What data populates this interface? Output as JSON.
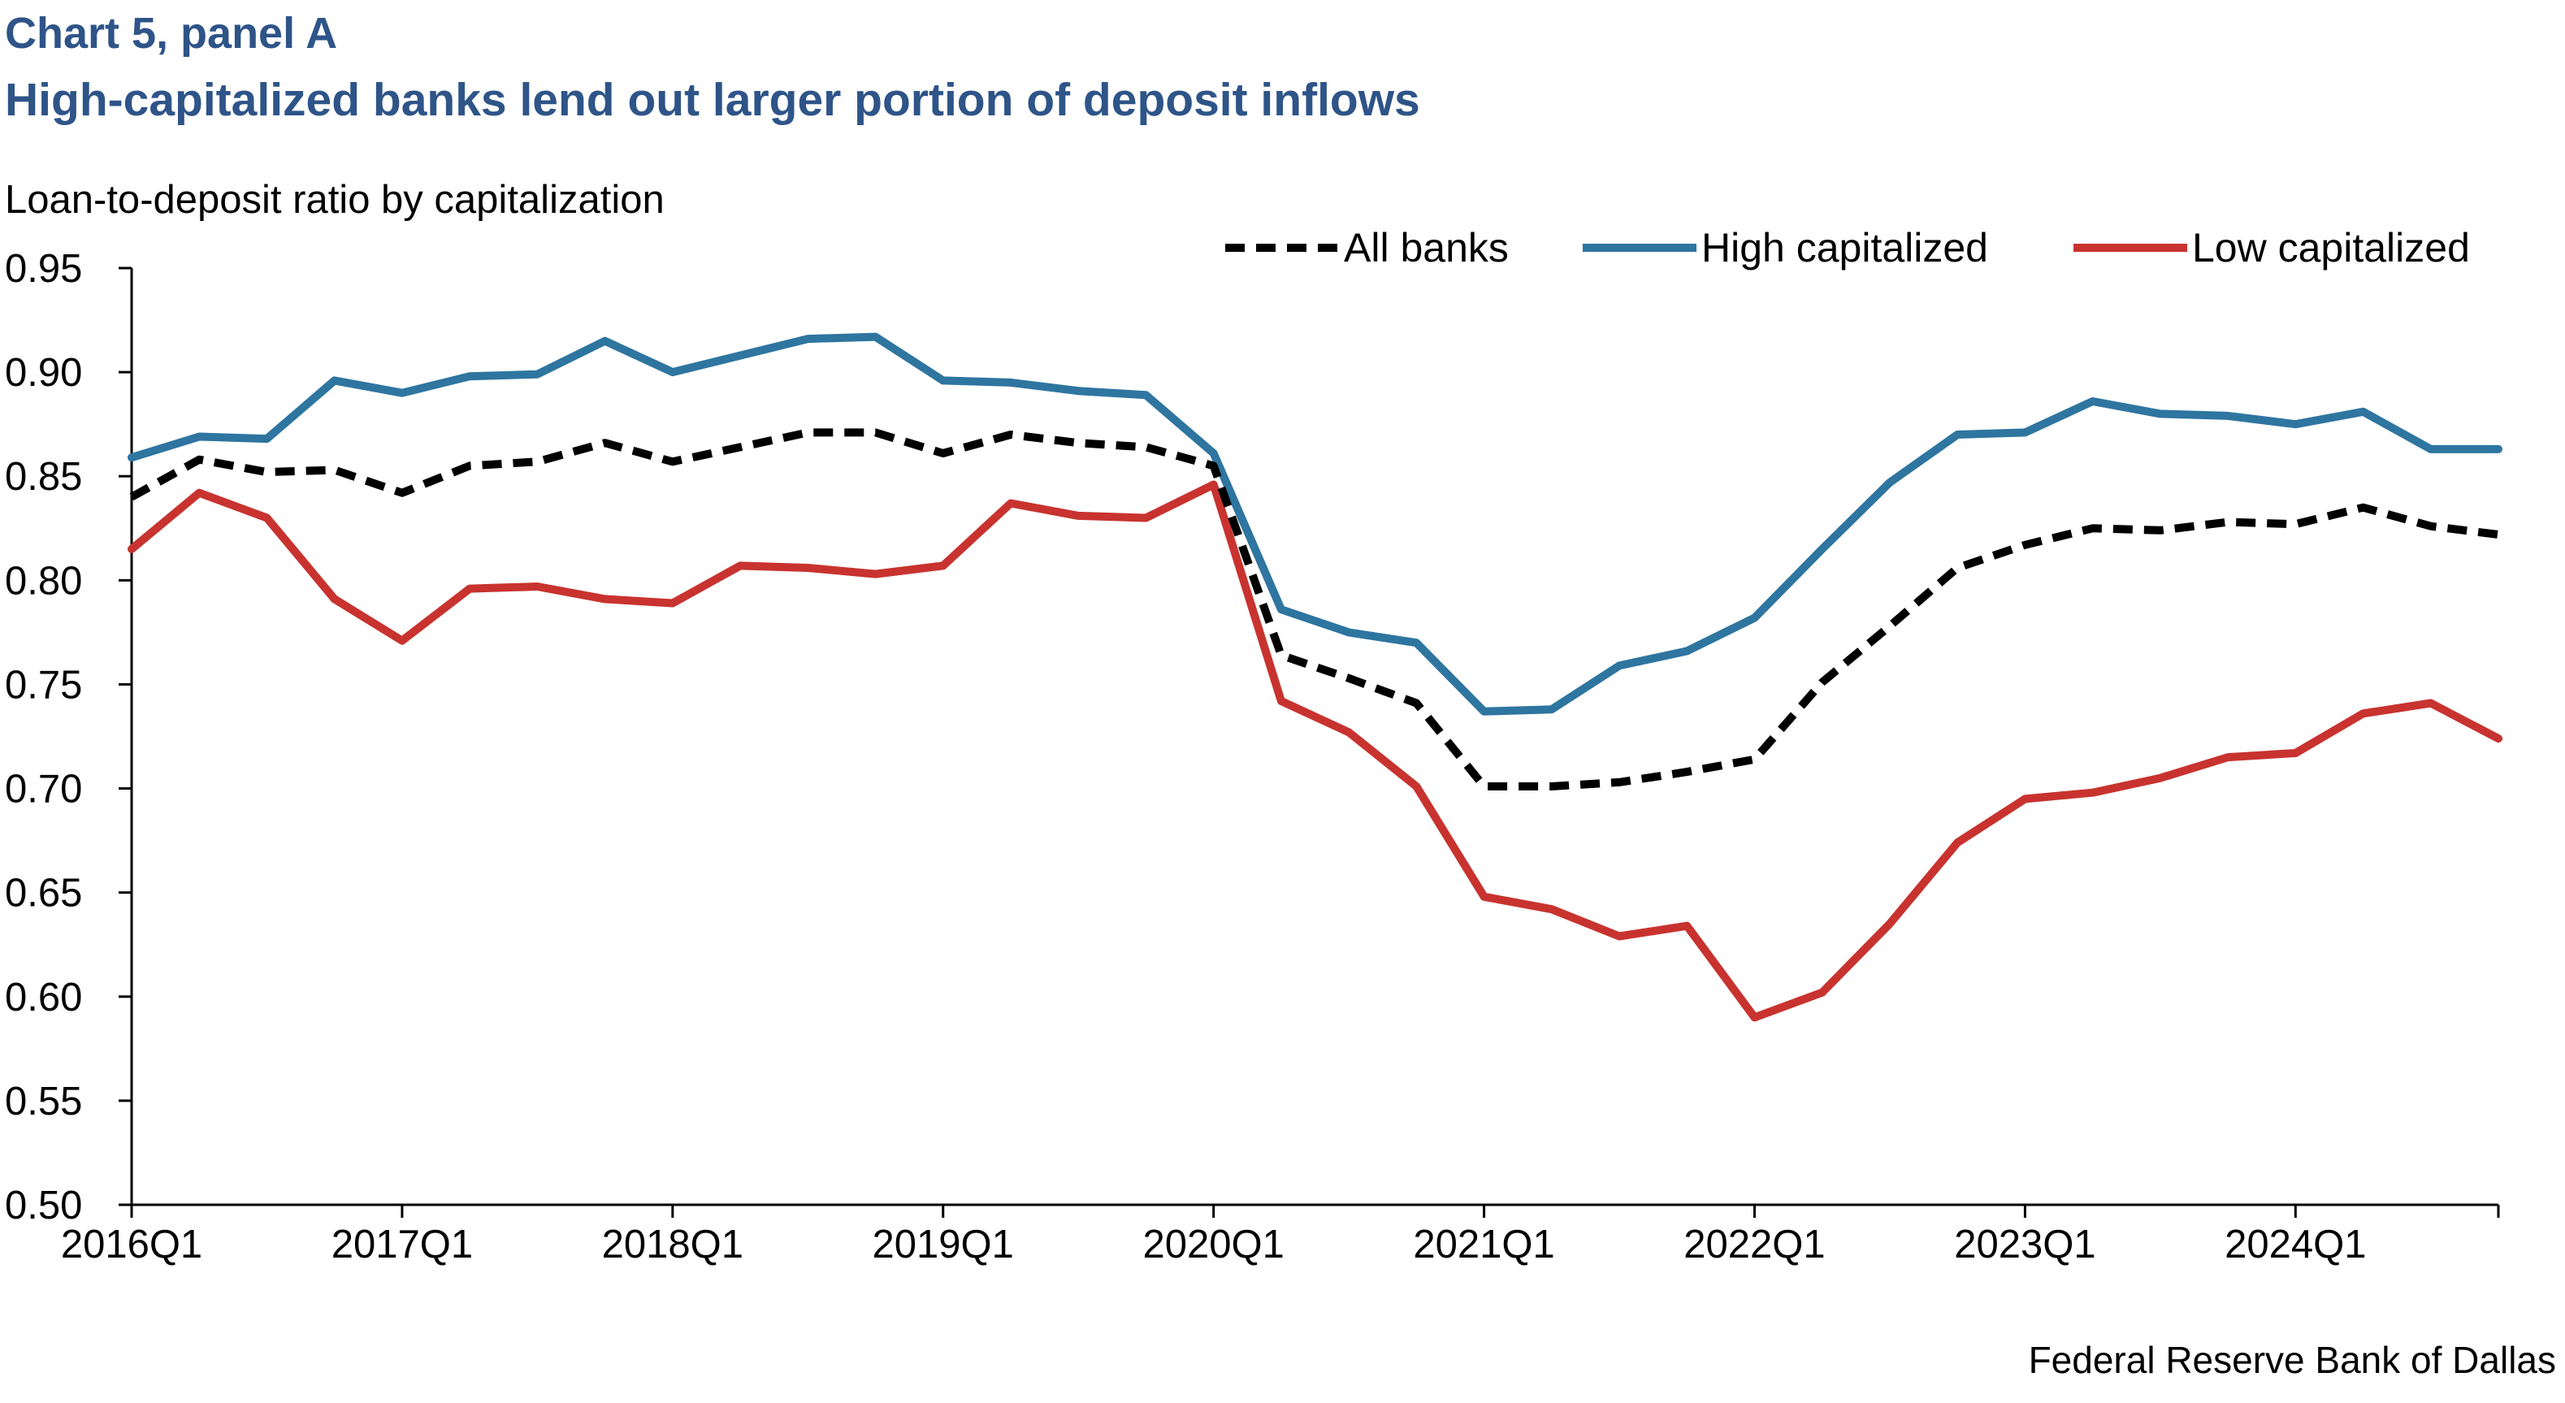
{
  "header": {
    "title": "Chart 5, panel A",
    "subtitle": "High-capitalized banks lend out larger portion of deposit inflows"
  },
  "source": "Federal Reserve Bank of Dallas",
  "colors": {
    "title": "#2e5488",
    "all_banks": "#000000",
    "high_capitalized": "#2e75a0",
    "low_capitalized": "#c8332f"
  },
  "chart_data": {
    "type": "line",
    "title": "High-capitalized banks lend out larger portion of deposit inflows",
    "ylabel": "Loan-to-deposit ratio by capitalization",
    "xlabel": "",
    "ylim": [
      0.5,
      0.95
    ],
    "yticks": [
      "0.50",
      "0.55",
      "0.60",
      "0.65",
      "0.70",
      "0.75",
      "0.80",
      "0.85",
      "0.90",
      "0.95"
    ],
    "xtick_labels": [
      "2016Q1",
      "2017Q1",
      "2018Q1",
      "2019Q1",
      "2020Q1",
      "2021Q1",
      "2022Q1",
      "2023Q1",
      "2024Q1"
    ],
    "x": [
      "2016Q1",
      "2016Q2",
      "2016Q3",
      "2016Q4",
      "2017Q1",
      "2017Q2",
      "2017Q3",
      "2017Q4",
      "2018Q1",
      "2018Q2",
      "2018Q3",
      "2018Q4",
      "2019Q1",
      "2019Q2",
      "2019Q3",
      "2019Q4",
      "2020Q1",
      "2020Q2",
      "2020Q3",
      "2020Q4",
      "2021Q1",
      "2021Q2",
      "2021Q3",
      "2021Q4",
      "2022Q1",
      "2022Q2",
      "2022Q3",
      "2022Q4",
      "2023Q1",
      "2023Q2",
      "2023Q3",
      "2023Q4",
      "2024Q1",
      "2024Q2",
      "2024Q3",
      "2024Q4"
    ],
    "series": [
      {
        "name": "All banks",
        "style": "dashed",
        "values": [
          0.84,
          0.858,
          0.852,
          0.853,
          0.842,
          0.855,
          0.857,
          0.866,
          0.857,
          0.864,
          0.871,
          0.871,
          0.861,
          0.87,
          0.866,
          0.864,
          0.855,
          0.764,
          0.753,
          0.741,
          0.701,
          0.701,
          0.703,
          0.708,
          0.714,
          0.751,
          0.778,
          0.806,
          0.817,
          0.825,
          0.824,
          0.828,
          0.827,
          0.835,
          0.826,
          0.822
        ]
      },
      {
        "name": "High capitalized",
        "style": "solid",
        "values": [
          0.859,
          0.869,
          0.868,
          0.896,
          0.89,
          0.898,
          0.899,
          0.915,
          0.9,
          0.908,
          0.916,
          0.917,
          0.896,
          0.895,
          0.891,
          0.889,
          0.861,
          0.786,
          0.775,
          0.77,
          0.737,
          0.738,
          0.759,
          0.766,
          0.782,
          0.815,
          0.847,
          0.87,
          0.871,
          0.886,
          0.88,
          0.879,
          0.875,
          0.881,
          0.863,
          0.863
        ]
      },
      {
        "name": "Low capitalized",
        "style": "solid",
        "values": [
          0.815,
          0.842,
          0.83,
          0.791,
          0.771,
          0.796,
          0.797,
          0.791,
          0.789,
          0.807,
          0.806,
          0.803,
          0.807,
          0.837,
          0.831,
          0.83,
          0.846,
          0.742,
          0.727,
          0.701,
          0.648,
          0.642,
          0.629,
          0.634,
          0.59,
          0.602,
          0.635,
          0.674,
          0.695,
          0.698,
          0.705,
          0.715,
          0.717,
          0.736,
          0.741,
          0.724
        ]
      }
    ],
    "legend_position": "top-right",
    "grid": false
  }
}
